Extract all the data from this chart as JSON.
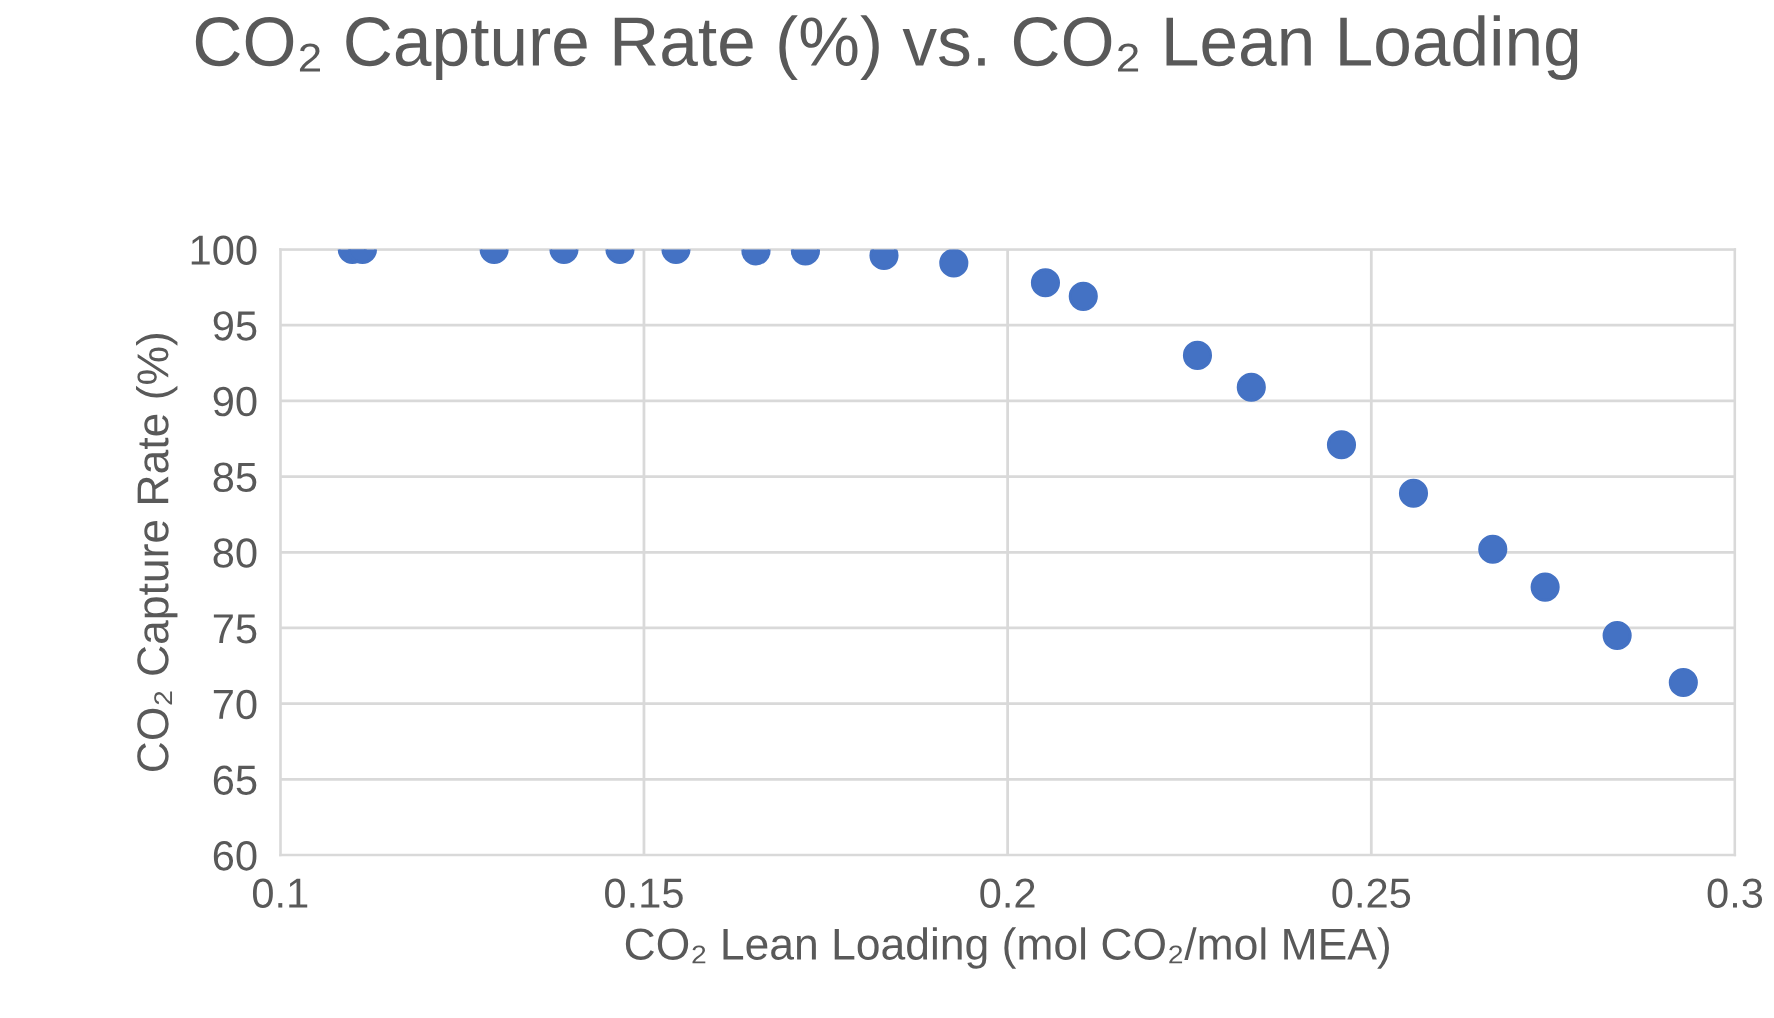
{
  "chart_data": {
    "type": "scatter",
    "title": "CO₂ Capture Rate (%) vs. CO₂ Lean Loading",
    "xlabel": "CO₂ Lean Loading (mol CO₂/mol MEA)",
    "ylabel": "CO₂ Capture Rate (%)",
    "x": [
      0.1099,
      0.1113,
      0.1294,
      0.139,
      0.1467,
      0.1544,
      0.1654,
      0.1722,
      0.183,
      0.1926,
      0.2052,
      0.2104,
      0.2261,
      0.2335,
      0.2459,
      0.2558,
      0.2667,
      0.2739,
      0.2838,
      0.2929
    ],
    "series": [
      {
        "color": "#4472c4",
        "values": [
          100,
          100,
          100,
          100,
          100,
          100,
          99.9,
          99.9,
          99.6,
          99.1,
          97.8,
          96.9,
          93.0,
          90.9,
          87.1,
          83.9,
          80.2,
          77.7,
          74.5,
          71.4
        ]
      }
    ],
    "xlim": [
      0.1,
      0.3
    ],
    "xticks": [
      0.1,
      0.15,
      0.2,
      0.25,
      0.3
    ],
    "ylim": [
      60,
      100
    ],
    "yticks": [
      60,
      65,
      70,
      75,
      80,
      85,
      90,
      95,
      100
    ],
    "grid": true,
    "marker": "circle"
  }
}
